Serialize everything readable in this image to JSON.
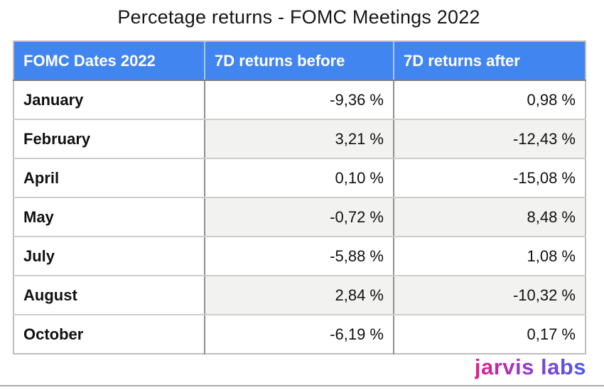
{
  "title": "Percetage returns - FOMC Meetings 2022",
  "brand": {
    "logo_text": "jarvis labs",
    "gradient_start": "#e0218a",
    "gradient_mid": "#9739c9",
    "gradient_end": "#4b5ce0"
  },
  "colors": {
    "header_bg": "#4185f0",
    "header_text": "#ffffff",
    "alt_row_bg": "#f2f2f0",
    "column_border": "#8f8f8f",
    "row_border": "#cdcdcd",
    "outer_border": "#bdbdbd",
    "bottom_line": "#a9a9a9"
  },
  "table": {
    "headers": [
      "FOMC Dates 2022",
      "7D returns before",
      "7D returns after"
    ],
    "rows": [
      {
        "month": "January",
        "before": "-9,36 %",
        "after": "0,98 %"
      },
      {
        "month": "February",
        "before": "3,21 %",
        "after": "-12,43 %"
      },
      {
        "month": "April",
        "before": "0,10 %",
        "after": "-15,08 %"
      },
      {
        "month": "May",
        "before": "-0,72 %",
        "after": "8,48 %"
      },
      {
        "month": "July",
        "before": "-5,88 %",
        "after": "1,08 %"
      },
      {
        "month": "August",
        "before": "2,84 %",
        "after": "-10,32 %"
      },
      {
        "month": "October",
        "before": "-6,19 %",
        "after": "0,17 %"
      }
    ]
  },
  "chart_data": {
    "type": "table",
    "title": "Percetage returns - FOMC Meetings 2022",
    "columns": [
      "FOMC Dates 2022",
      "7D returns before",
      "7D returns after"
    ],
    "units": "%",
    "decimal_separator": ",",
    "rows": [
      [
        "January",
        -9.36,
        0.98
      ],
      [
        "February",
        3.21,
        -12.43
      ],
      [
        "April",
        0.1,
        -15.08
      ],
      [
        "May",
        -0.72,
        8.48
      ],
      [
        "July",
        -5.88,
        1.08
      ],
      [
        "August",
        2.84,
        -10.32
      ],
      [
        "October",
        -6.19,
        0.17
      ]
    ]
  }
}
